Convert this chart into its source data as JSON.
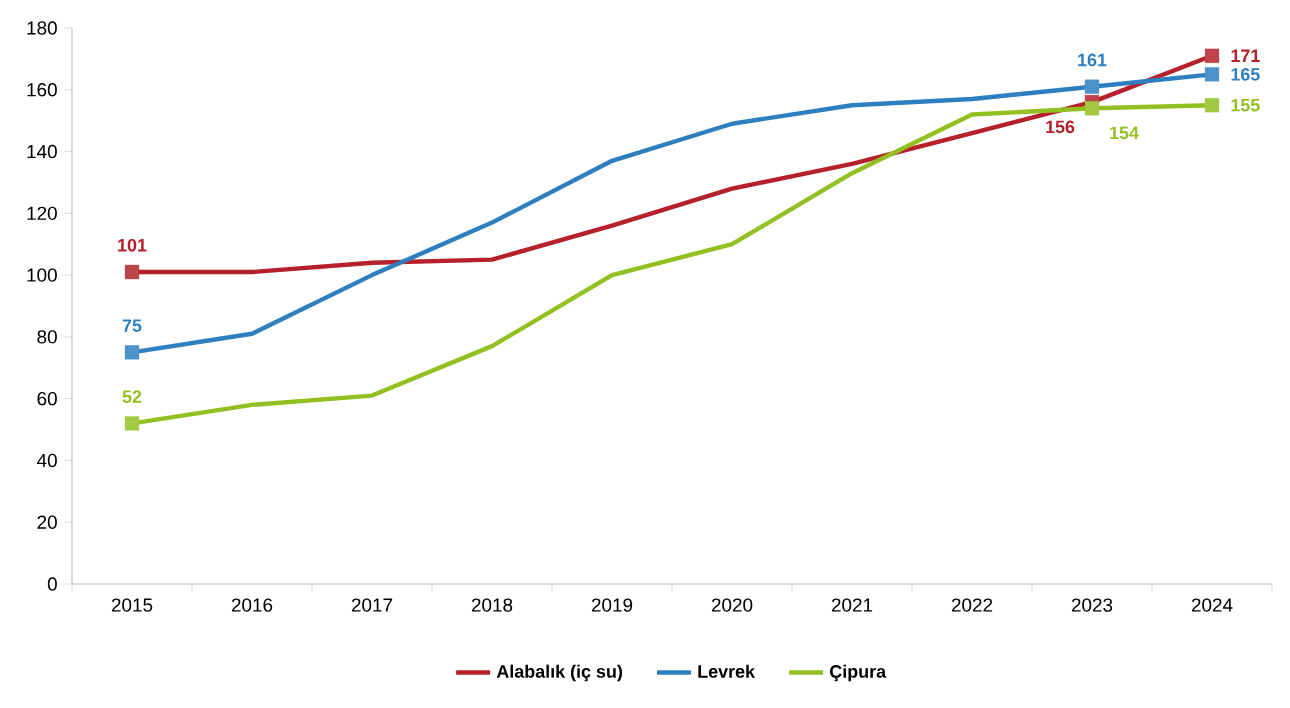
{
  "chart_data": {
    "type": "line",
    "categories": [
      "2015",
      "2016",
      "2017",
      "2018",
      "2019",
      "2020",
      "2021",
      "2022",
      "2023",
      "2024"
    ],
    "series": [
      {
        "name": "Alabalık (iç su)",
        "color": "#b5202a",
        "values": [
          101,
          101,
          104,
          105,
          116,
          128,
          136,
          146,
          156,
          171
        ],
        "value_labels": [
          "101",
          null,
          null,
          null,
          null,
          null,
          null,
          null,
          "156",
          "171"
        ]
      },
      {
        "name": "Levrek",
        "color": "#2e7fc0",
        "values": [
          75,
          81,
          100,
          117,
          137,
          149,
          155,
          157,
          161,
          165
        ],
        "value_labels": [
          "75",
          null,
          null,
          null,
          null,
          null,
          null,
          null,
          "161",
          "165"
        ]
      },
      {
        "name": "Çipura",
        "color": "#92c020",
        "values": [
          52,
          58,
          61,
          77,
          100,
          110,
          133,
          152,
          154,
          155
        ],
        "value_labels": [
          "52",
          null,
          null,
          null,
          null,
          null,
          null,
          null,
          "154",
          "155"
        ]
      }
    ],
    "ylim": [
      0,
      180
    ],
    "yticks": [
      0,
      20,
      40,
      60,
      80,
      100,
      120,
      140,
      160,
      180
    ],
    "grid": false,
    "legend": "bottom",
    "line_style": "solid"
  }
}
